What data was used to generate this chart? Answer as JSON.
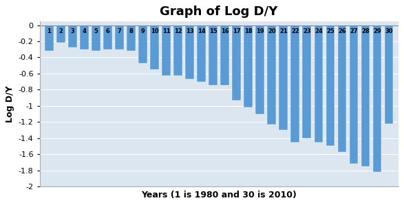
{
  "title": "Graph of Log D/Y",
  "xlabel": "Years (1 is 1980 and 30 is 2010)",
  "ylabel": "Log D/Y",
  "categories": [
    1,
    2,
    3,
    4,
    5,
    6,
    7,
    8,
    9,
    10,
    11,
    12,
    13,
    14,
    15,
    16,
    17,
    18,
    19,
    20,
    21,
    22,
    23,
    24,
    25,
    26,
    27,
    28,
    29,
    30
  ],
  "values": [
    -0.32,
    -0.22,
    -0.28,
    -0.3,
    -0.32,
    -0.3,
    -0.3,
    -0.32,
    -0.47,
    -0.55,
    -0.63,
    -0.63,
    -0.67,
    -0.7,
    -0.75,
    -0.75,
    -0.93,
    -1.02,
    -1.1,
    -1.23,
    -1.3,
    -1.45,
    -1.4,
    -1.45,
    -1.5,
    -1.57,
    -1.72,
    -1.75,
    -1.82,
    -1.22
  ],
  "bar_color": "#5B9BD5",
  "ylim": [
    -2,
    0.05
  ],
  "yticks": [
    0,
    -0.2,
    -0.4,
    -0.6,
    -0.8,
    -1.0,
    -1.2,
    -1.4,
    -1.6,
    -1.8,
    -2.0
  ],
  "plot_bg_color": "#dce6f1",
  "fig_bg_color": "#ffffff",
  "title_fontsize": 13,
  "label_fontsize": 9,
  "tick_fontsize": 8,
  "bar_label_fontsize": 6,
  "grid_color": "#ffffff",
  "spine_color": "#aaaaaa"
}
